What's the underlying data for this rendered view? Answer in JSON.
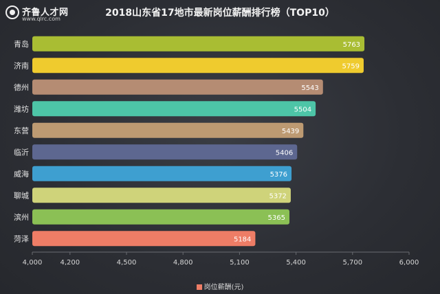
{
  "logo": {
    "name": "齐鲁人才网",
    "url": "www.qlrc.com"
  },
  "chart_data": {
    "type": "bar",
    "orientation": "horizontal",
    "title": "2018山东省17地市最新岗位薪酬排行榜（TOP10）",
    "categories": [
      "青岛",
      "济南",
      "德州",
      "潍坊",
      "东营",
      "临沂",
      "威海",
      "聊城",
      "滨州",
      "菏泽"
    ],
    "series": [
      {
        "name": "岗位薪酬(元)",
        "values": [
          5763,
          5759,
          5543,
          5504,
          5439,
          5406,
          5376,
          5372,
          5365,
          5184
        ]
      }
    ],
    "bar_colors": [
      "#a9bd33",
      "#efcb2e",
      "#b58c73",
      "#4dc5a7",
      "#bd9a72",
      "#5d6790",
      "#3e9fd0",
      "#cfd37a",
      "#8bc055",
      "#ee7d66"
    ],
    "xlim": [
      4000,
      6000
    ],
    "xticks": [
      "4,000",
      "4,200",
      "4,500",
      "4,800",
      "5,100",
      "5,400",
      "5,700",
      "6,000"
    ],
    "grid": false,
    "legend_position": "bottom"
  }
}
